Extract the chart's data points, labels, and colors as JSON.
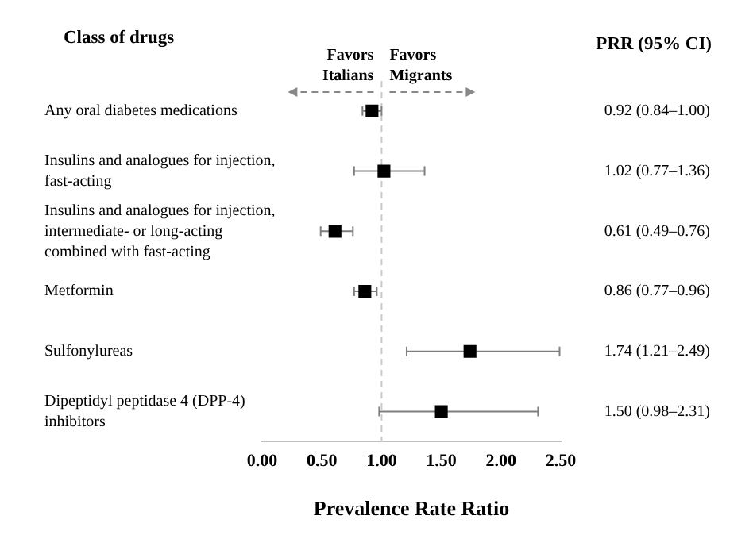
{
  "chart_data": {
    "type": "scatter",
    "orientation": "horizontal",
    "ylabel": "Class of drugs",
    "xlabel": "Prevalence Rate Ratio",
    "categories": [
      "Any oral diabetes medications",
      "Insulins and analogues for injection, fast-acting",
      "Insulins and analogues for injection, intermediate- or long-acting combined with fast-acting",
      "Metformin",
      "Sulfonylureas",
      "Dipeptidyl peptidase 4 (DPP-4) inhibitors"
    ],
    "values": [
      0.92,
      1.02,
      0.61,
      0.86,
      1.74,
      1.5
    ],
    "errors": [
      [
        0.84,
        1.0
      ],
      [
        0.77,
        1.36
      ],
      [
        0.49,
        0.76
      ],
      [
        0.77,
        0.96
      ],
      [
        1.21,
        2.49
      ],
      [
        0.98,
        2.31
      ]
    ],
    "value_labels": [
      "0.92 (0.84–1.00)",
      "1.02 (0.77–1.36)",
      "0.61 (0.49–0.76)",
      "0.86 (0.77–0.96)",
      "1.74 (1.21–2.49)",
      "1.50 (0.98–2.31)"
    ],
    "color": "#000000",
    "marker": "square",
    "xlim": [
      0,
      2.5
    ],
    "xticks": [
      {
        "value": 0,
        "label": "0.00"
      },
      {
        "value": 0.5,
        "label": "0.50"
      },
      {
        "value": 1,
        "label": "1.00"
      },
      {
        "value": 1.5,
        "label": "1.50"
      },
      {
        "value": 2,
        "label": "2.00"
      },
      {
        "value": 2.5,
        "label": "2.50"
      }
    ],
    "ref_lines": [
      {
        "axis": "x",
        "value": 1,
        "color": "#c8c8c8",
        "line_style": "dashed"
      }
    ],
    "annotations": [
      "PRR (95% CI)",
      "Favors Italians",
      "Favors Migrants"
    ],
    "grid": false,
    "legend": false
  }
}
